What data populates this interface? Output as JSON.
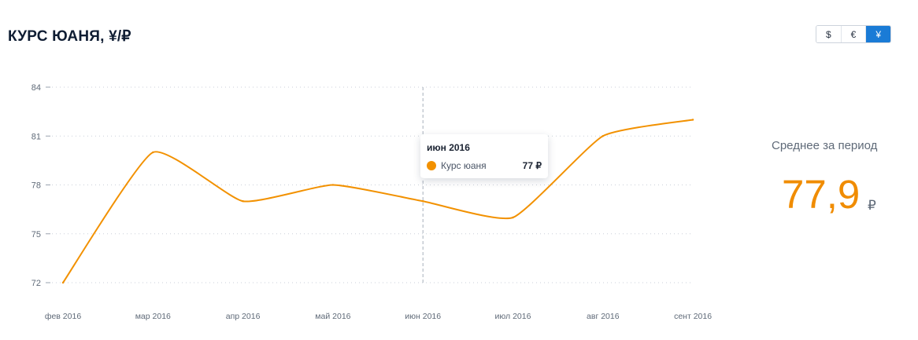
{
  "header": {
    "title": "КУРС ЮАНЯ, ¥/₽"
  },
  "currency_switch": {
    "options": [
      {
        "label": "$",
        "active": false
      },
      {
        "label": "€",
        "active": false
      },
      {
        "label": "¥",
        "active": true
      }
    ],
    "active_color": "#1a7bd6"
  },
  "chart_data": {
    "type": "line",
    "categories": [
      "фев 2016",
      "мар 2016",
      "апр 2016",
      "май 2016",
      "июн 2016",
      "июл 2016",
      "авг 2016",
      "сент 2016"
    ],
    "series": [
      {
        "name": "Курс юаня",
        "values": [
          72,
          80,
          77,
          78,
          77,
          76,
          81,
          82
        ],
        "color": "#f29100"
      }
    ],
    "yticks": [
      "72",
      "75",
      "78",
      "81",
      "84"
    ],
    "ylim": [
      72,
      84
    ],
    "grid": true,
    "hover_category": "июн 2016"
  },
  "tooltip": {
    "title": "июн 2016",
    "label": "Курс юаня",
    "value": "77 ₽"
  },
  "summary": {
    "label": "Среднее за период",
    "value": "77,9",
    "unit": "₽",
    "color": "#f08c00"
  }
}
